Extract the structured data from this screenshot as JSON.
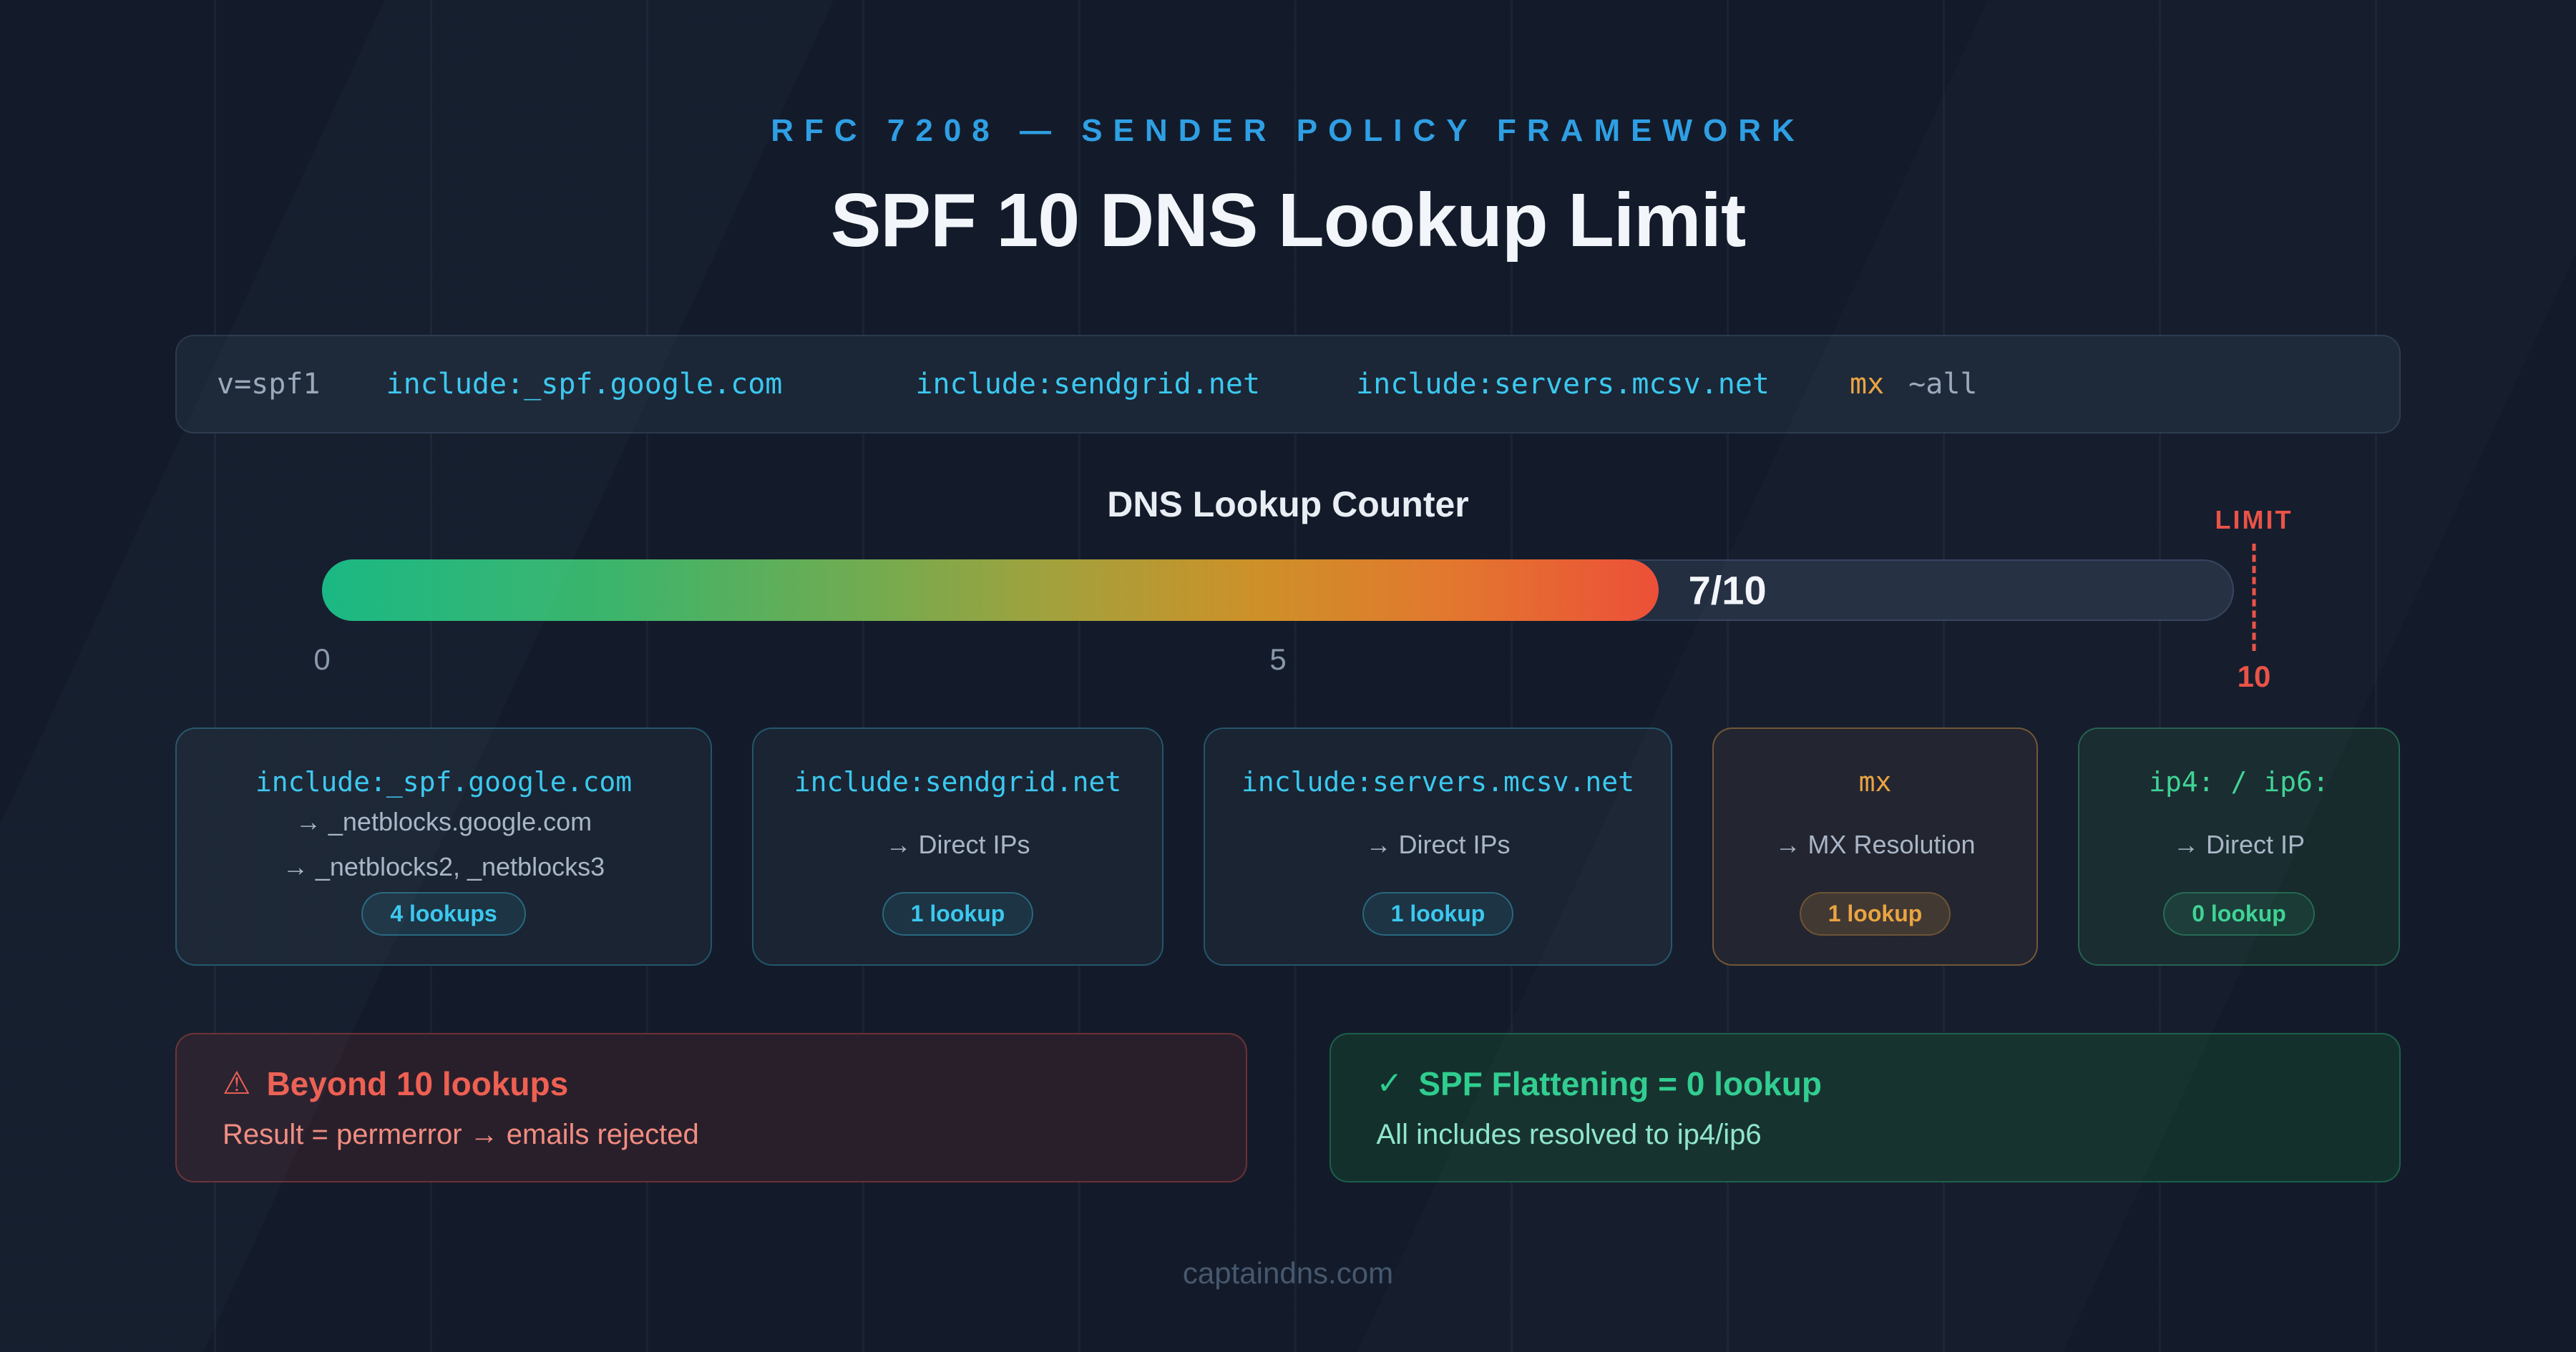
{
  "theme": {
    "bg": "#131B2A",
    "grid-line": "rgba(148,180,220,0.055)",
    "panel-bg": "#1B2636",
    "panel-border": "rgba(148,180,220,0.14)",
    "text-main": "#F2F5F9",
    "text-muted": "#9AA8BA",
    "kicker-blue": "#2F9FE4",
    "accent-cyan": "#3BC8EF",
    "accent-orange": "#EBA33F",
    "accent-green": "#3ED394",
    "accent-red": "#EA5347",
    "track-bg": "#232E41",
    "track-border": "#36425D",
    "danger-bg": "#291F2B",
    "danger-border": "rgba(234,83,71,0.35)",
    "danger-text": "#EE6052",
    "danger-body": "#F28D80",
    "ok-bg": "#14302C",
    "ok-border": "rgba(46,205,143,0.30)",
    "ok-title": "#2FCD8F",
    "ok-body": "#90E7CA",
    "footer-text": "#47586E"
  },
  "header": {
    "kicker": "RFC 7208 — SENDER POLICY FRAMEWORK",
    "title": "SPF 10 DNS Lookup Limit"
  },
  "spf_record": {
    "tokens": [
      {
        "text": "v=spf1",
        "color": "muted"
      },
      {
        "text": "include:_spf.google.com",
        "color": "cyan"
      },
      {
        "text": "include:sendgrid.net",
        "color": "cyan"
      },
      {
        "text": "include:servers.mcsv.net",
        "color": "cyan"
      },
      {
        "text": "mx",
        "color": "orange"
      },
      {
        "text": "~all",
        "color": "muted"
      }
    ]
  },
  "counter": {
    "label": "DNS Lookup Counter",
    "value": 7,
    "max": 10,
    "fill_percent": 70,
    "value_label": "7/10",
    "limit_label": "LIMIT",
    "ticks": [
      {
        "text": "0",
        "pos": 0
      },
      {
        "text": "5",
        "pos": 50
      },
      {
        "text": "10",
        "pos": 100
      }
    ]
  },
  "cards": [
    {
      "title": "include:_spf.google.com",
      "lines": [
        "→ _netblocks.google.com",
        "→ _netblocks2, _netblocks3"
      ],
      "badge": "4 lookups",
      "variant": "cyan"
    },
    {
      "title": "include:sendgrid.net",
      "lines": [
        "→ Direct IPs"
      ],
      "badge": "1 lookup",
      "variant": "cyan"
    },
    {
      "title": "include:servers.mcsv.net",
      "lines": [
        "→ Direct IPs"
      ],
      "badge": "1 lookup",
      "variant": "cyan"
    },
    {
      "title": "mx",
      "lines": [
        "→ MX Resolution"
      ],
      "badge": "1 lookup",
      "variant": "orange"
    },
    {
      "title": "ip4: / ip6:",
      "lines": [
        "→ Direct IP"
      ],
      "badge": "0 lookup",
      "variant": "green"
    }
  ],
  "alerts": {
    "danger": {
      "icon": "⚠",
      "title": "Beyond 10 lookups",
      "body": "Result = permerror → emails rejected"
    },
    "success": {
      "icon": "✓",
      "title": "SPF Flattening = 0 lookup",
      "body": "All includes resolved to ip4/ip6"
    }
  },
  "footer": {
    "site": "captaindns.com"
  }
}
